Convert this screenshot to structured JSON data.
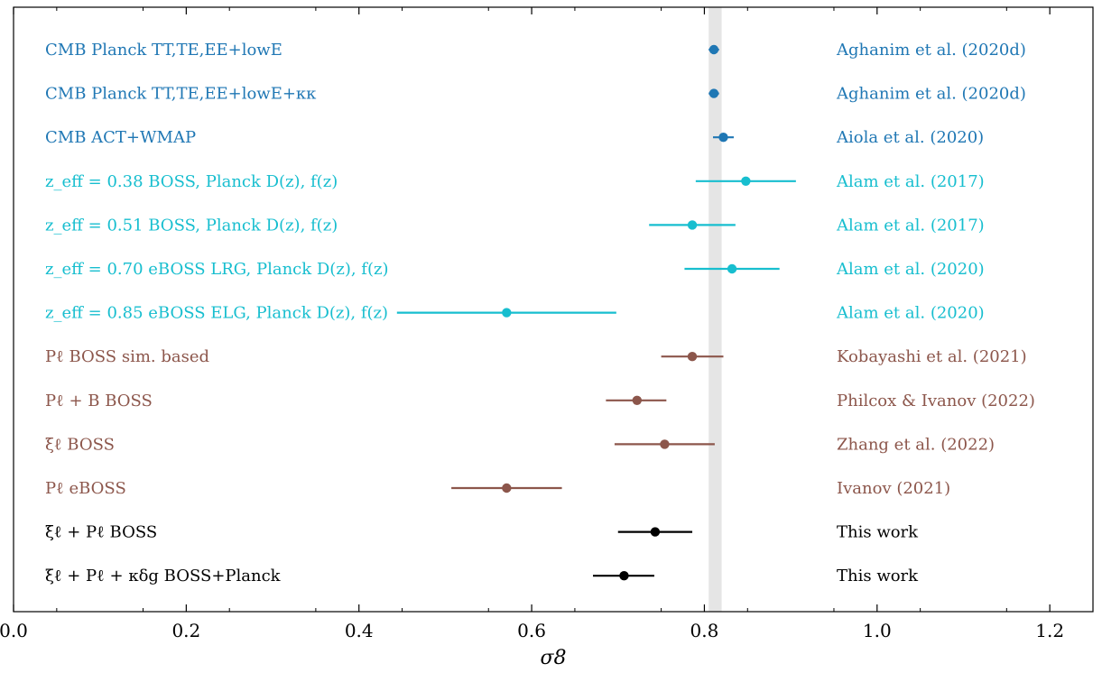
{
  "chart_data": {
    "type": "scatter",
    "subtype": "errorbar-forest",
    "title": "",
    "xlabel": "σ8",
    "ylabel": "",
    "xlim": [
      0.0,
      1.25
    ],
    "xticks": [
      "0.0",
      "0.2",
      "0.4",
      "0.6",
      "0.8",
      "1.0",
      "1.2"
    ],
    "grid": false,
    "reference_band": {
      "x_low": 0.805,
      "x_high": 0.82,
      "color": "#e5e5e5"
    },
    "colors": {
      "cmb": "#1f77b4",
      "boss_planck": "#17becf",
      "fullshape": "#8c564b",
      "this_work": "#000000"
    },
    "rows": [
      {
        "label": "CMB Planck TT,TE,EE+lowE",
        "reference": "Aghanim et al. (2020d)",
        "value": 0.811,
        "err_low": 0.006,
        "err_high": 0.006,
        "color_key": "cmb"
      },
      {
        "label": "CMB Planck TT,TE,EE+lowE+κκ",
        "reference": "Aghanim et al. (2020d)",
        "value": 0.811,
        "err_low": 0.006,
        "err_high": 0.006,
        "color_key": "cmb"
      },
      {
        "label": "CMB ACT+WMAP",
        "reference": "Aiola et al. (2020)",
        "value": 0.822,
        "err_low": 0.012,
        "err_high": 0.012,
        "color_key": "cmb"
      },
      {
        "label": "z_eff = 0.38 BOSS, Planck D(z), f(z)",
        "reference": "Alam et al. (2017)",
        "value": 0.848,
        "err_low": 0.058,
        "err_high": 0.058,
        "color_key": "boss_planck"
      },
      {
        "label": "z_eff = 0.51 BOSS, Planck D(z), f(z)",
        "reference": "Alam et al. (2017)",
        "value": 0.786,
        "err_low": 0.05,
        "err_high": 0.05,
        "color_key": "boss_planck"
      },
      {
        "label": "z_eff = 0.70 eBOSS LRG, Planck D(z), f(z)",
        "reference": "Alam et al. (2020)",
        "value": 0.832,
        "err_low": 0.055,
        "err_high": 0.055,
        "color_key": "boss_planck"
      },
      {
        "label": "z_eff = 0.85 eBOSS ELG, Planck D(z), f(z)",
        "reference": "Alam et al. (2020)",
        "value": 0.571,
        "err_low": 0.127,
        "err_high": 0.127,
        "color_key": "boss_planck"
      },
      {
        "label": "Pℓ BOSS sim. based",
        "reference": "Kobayashi et al. (2021)",
        "value": 0.786,
        "err_low": 0.036,
        "err_high": 0.036,
        "color_key": "fullshape"
      },
      {
        "label": "Pℓ + B BOSS",
        "reference": "Philcox & Ivanov (2022)",
        "value": 0.722,
        "err_low": 0.036,
        "err_high": 0.034,
        "color_key": "fullshape"
      },
      {
        "label": "ξℓ BOSS",
        "reference": "Zhang et al. (2022)",
        "value": 0.754,
        "err_low": 0.058,
        "err_high": 0.058,
        "color_key": "fullshape"
      },
      {
        "label": "Pℓ eBOSS",
        "reference": "Ivanov (2021)",
        "value": 0.571,
        "err_low": 0.064,
        "err_high": 0.064,
        "color_key": "fullshape"
      },
      {
        "label": "ξℓ + Pℓ BOSS",
        "reference": "This work",
        "value": 0.743,
        "err_low": 0.043,
        "err_high": 0.043,
        "color_key": "this_work"
      },
      {
        "label": "ξℓ + Pℓ + κδg BOSS+Planck",
        "reference": "This work",
        "value": 0.707,
        "err_low": 0.036,
        "err_high": 0.035,
        "color_key": "this_work"
      }
    ]
  }
}
